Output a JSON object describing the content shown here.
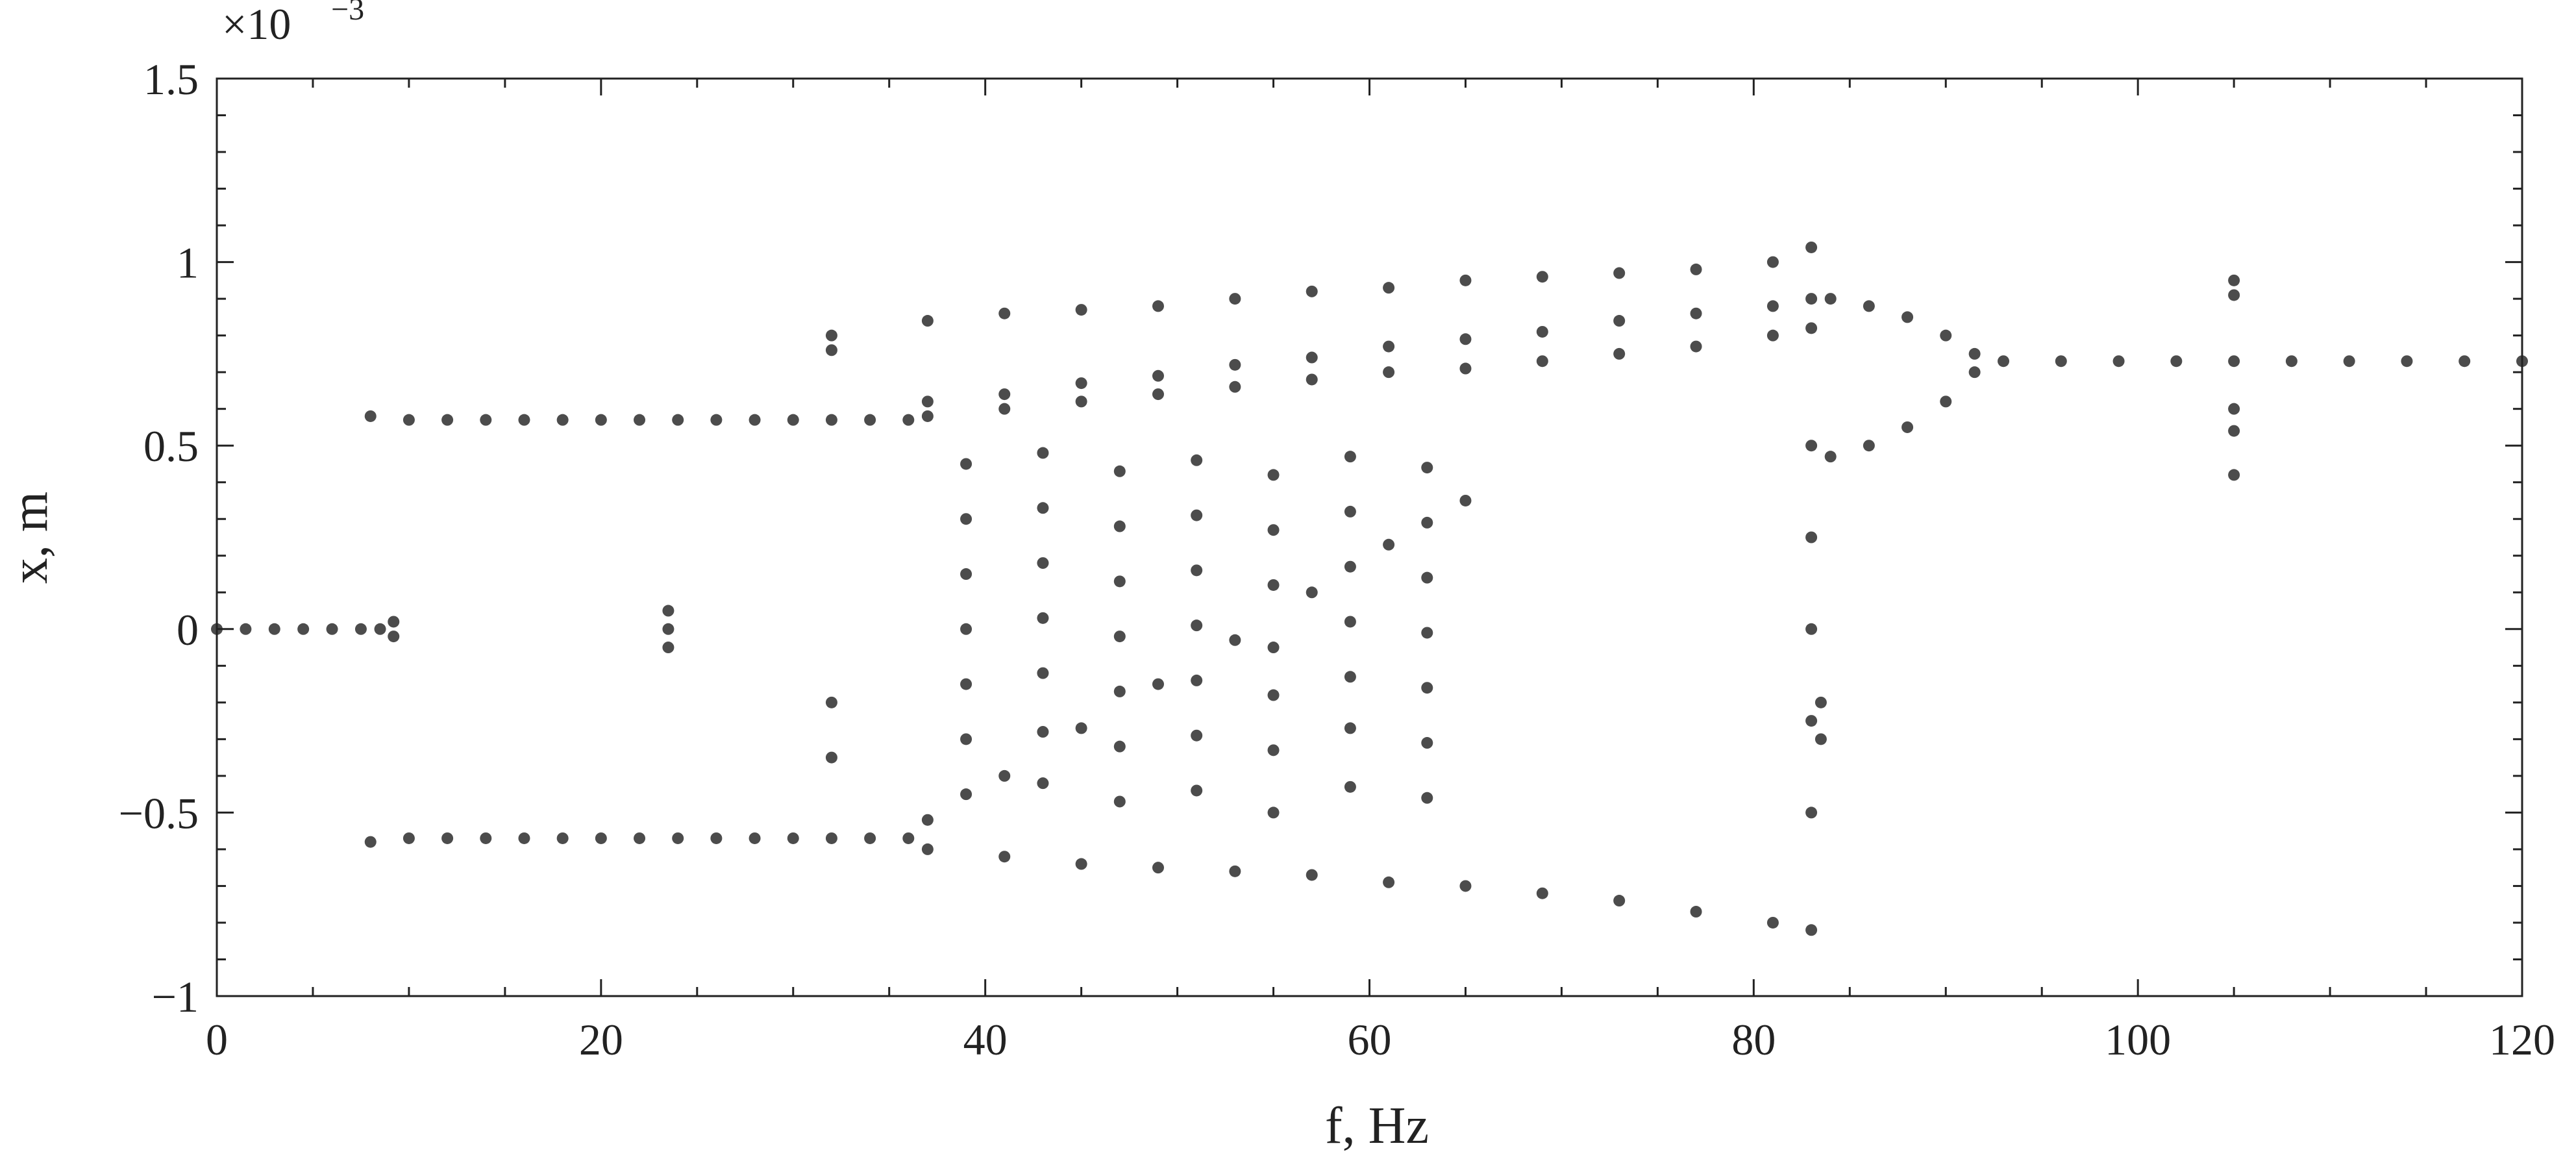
{
  "chart_data": {
    "type": "scatter",
    "xlabel": "f, Hz",
    "ylabel": "x, m",
    "y_scale_base": "×10",
    "y_scale_exponent": "−3",
    "color": "#000000",
    "xlim": [
      0,
      120
    ],
    "ylim": [
      -1,
      1.5
    ],
    "xticks": [
      0,
      20,
      40,
      60,
      80,
      100,
      120
    ],
    "yticks": [
      {
        "value": -1,
        "label": "−1"
      },
      {
        "value": -0.5,
        "label": "−0.5"
      },
      0,
      0.5,
      1,
      1.5
    ],
    "xminorticks": [
      5,
      10,
      15,
      25,
      30,
      35,
      45,
      50,
      55,
      65,
      70,
      75,
      85,
      90,
      95,
      105,
      110,
      115
    ],
    "yminorticks": [
      -0.9,
      -0.8,
      -0.7,
      -0.6,
      -0.4,
      -0.3,
      -0.2,
      -0.1,
      0.1,
      0.2,
      0.3,
      0.4,
      0.6,
      0.7,
      0.8,
      0.9,
      1.1,
      1.2,
      1.3,
      1.4
    ],
    "x": [
      0,
      1.5,
      3,
      4.5,
      6,
      7.5,
      8.5,
      9.2,
      9.2,
      8,
      10,
      12,
      14,
      16,
      18,
      20,
      22,
      24,
      26,
      28,
      30,
      32,
      34,
      36,
      8,
      10,
      12,
      14,
      16,
      18,
      20,
      22,
      24,
      26,
      28,
      30,
      32,
      34,
      36,
      37,
      41,
      45,
      49,
      53,
      57,
      61,
      65,
      69,
      73,
      77,
      81,
      83,
      37,
      41,
      45,
      49,
      53,
      57,
      61,
      65,
      69,
      73,
      77,
      81,
      83,
      37,
      41,
      45,
      49,
      53,
      57,
      61,
      65,
      69,
      73,
      77,
      81,
      83,
      37,
      41,
      45,
      49,
      53,
      57,
      61,
      65,
      69,
      73,
      77,
      81,
      83,
      37,
      41,
      45,
      49,
      53,
      57,
      61,
      65,
      39,
      39,
      39,
      39,
      39,
      39,
      39,
      43,
      43,
      43,
      43,
      43,
      43,
      43,
      47,
      47,
      47,
      47,
      47,
      47,
      47,
      51,
      51,
      51,
      51,
      51,
      51,
      51,
      55,
      55,
      55,
      55,
      55,
      55,
      55,
      59,
      59,
      59,
      59,
      59,
      59,
      59,
      63,
      63,
      63,
      63,
      63,
      63,
      63,
      84,
      86,
      88,
      90,
      91.5,
      84,
      86,
      88,
      90,
      91.5,
      93,
      96,
      99,
      102,
      105,
      108,
      111,
      114,
      117,
      120,
      83,
      83,
      83,
      83,
      83,
      83.5,
      83.5,
      105,
      105,
      105,
      105,
      105,
      32,
      32,
      32,
      32,
      23.5,
      23.5,
      23.5
    ],
    "values": [
      0,
      0,
      0,
      0,
      0,
      0,
      0,
      0.02,
      -0.02,
      0.58,
      0.57,
      0.57,
      0.57,
      0.57,
      0.57,
      0.57,
      0.57,
      0.57,
      0.57,
      0.57,
      0.57,
      0.57,
      0.57,
      0.57,
      -0.58,
      -0.57,
      -0.57,
      -0.57,
      -0.57,
      -0.57,
      -0.57,
      -0.57,
      -0.57,
      -0.57,
      -0.57,
      -0.57,
      -0.57,
      -0.57,
      -0.57,
      0.84,
      0.86,
      0.87,
      0.88,
      0.9,
      0.92,
      0.93,
      0.95,
      0.96,
      0.97,
      0.98,
      1.0,
      1.04,
      0.62,
      0.64,
      0.67,
      0.69,
      0.72,
      0.74,
      0.77,
      0.79,
      0.81,
      0.84,
      0.86,
      0.88,
      0.9,
      0.58,
      0.6,
      0.62,
      0.64,
      0.66,
      0.68,
      0.7,
      0.71,
      0.73,
      0.75,
      0.77,
      0.8,
      0.82,
      -0.6,
      -0.62,
      -0.64,
      -0.65,
      -0.66,
      -0.67,
      -0.69,
      -0.7,
      -0.72,
      -0.74,
      -0.77,
      -0.8,
      -0.82,
      -0.52,
      -0.4,
      -0.27,
      -0.15,
      -0.03,
      0.1,
      0.23,
      0.35,
      -0.45,
      -0.3,
      -0.15,
      0,
      0.15,
      0.3,
      0.45,
      -0.42,
      -0.28,
      -0.12,
      0.03,
      0.18,
      0.33,
      0.48,
      -0.47,
      -0.32,
      -0.17,
      -0.02,
      0.13,
      0.28,
      0.43,
      -0.44,
      -0.29,
      -0.14,
      0.01,
      0.16,
      0.31,
      0.46,
      -0.5,
      -0.33,
      -0.18,
      -0.05,
      0.12,
      0.27,
      0.42,
      -0.43,
      -0.27,
      -0.13,
      0.02,
      0.17,
      0.32,
      0.47,
      -0.46,
      -0.31,
      -0.16,
      -0.01,
      0.14,
      0.29,
      0.44,
      0.9,
      0.88,
      0.85,
      0.8,
      0.75,
      0.47,
      0.5,
      0.55,
      0.62,
      0.7,
      0.73,
      0.73,
      0.73,
      0.73,
      0.73,
      0.73,
      0.73,
      0.73,
      0.73,
      0.73,
      -0.5,
      -0.25,
      0,
      0.25,
      0.5,
      -0.3,
      -0.2,
      0.95,
      0.91,
      0.6,
      0.54,
      0.42,
      0.8,
      0.76,
      -0.2,
      -0.35,
      0,
      0.05,
      -0.05
    ]
  }
}
